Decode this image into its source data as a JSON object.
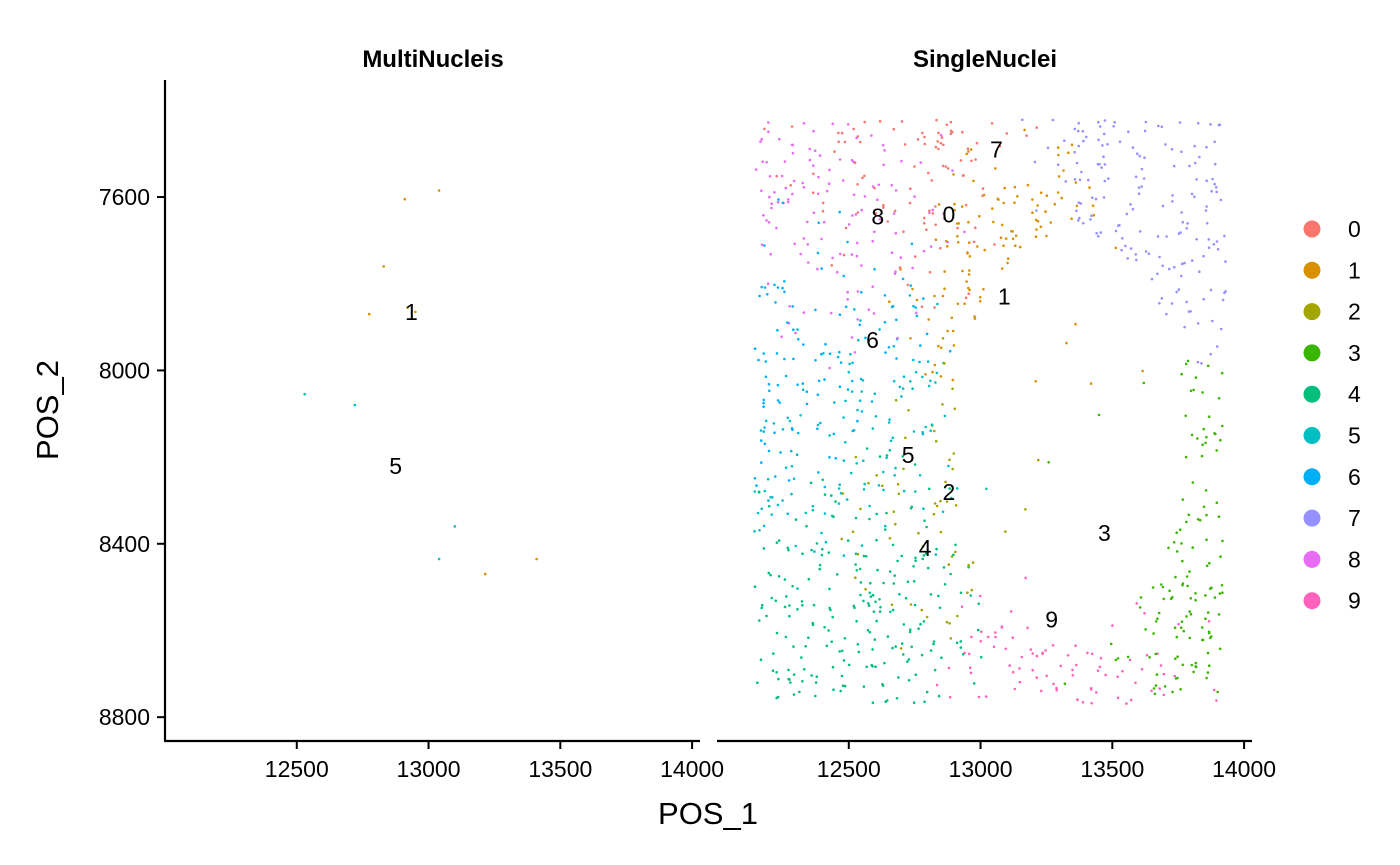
{
  "chart_data": {
    "type": "scatter",
    "xlabel": "POS_1",
    "ylabel": "POS_2",
    "x_ticks": [
      12500,
      13000,
      13500,
      14000
    ],
    "y_ticks": [
      7600,
      8000,
      8400,
      8800
    ],
    "xlim": [
      12000,
      14030
    ],
    "ylim": [
      7330,
      8855
    ],
    "y_reversed": true,
    "legend_position": "right",
    "legend": [
      {
        "label": "0",
        "color": "#F8766D"
      },
      {
        "label": "1",
        "color": "#D89000"
      },
      {
        "label": "2",
        "color": "#A3A500"
      },
      {
        "label": "3",
        "color": "#39B600"
      },
      {
        "label": "4",
        "color": "#00BF7D"
      },
      {
        "label": "5",
        "color": "#00BFC4"
      },
      {
        "label": "6",
        "color": "#00B0F6"
      },
      {
        "label": "7",
        "color": "#9590FF"
      },
      {
        "label": "8",
        "color": "#E76BF3"
      },
      {
        "label": "9",
        "color": "#FF62BC"
      }
    ],
    "panels": [
      {
        "title": "MultiNucleis",
        "points": [
          {
            "x": 12910,
            "y": 7605,
            "c": 1
          },
          {
            "x": 13040,
            "y": 7585,
            "c": 1
          },
          {
            "x": 12830,
            "y": 7760,
            "c": 1
          },
          {
            "x": 12775,
            "y": 7870,
            "c": 1
          },
          {
            "x": 12920,
            "y": 7855,
            "c": 1
          },
          {
            "x": 12950,
            "y": 7865,
            "c": 1
          },
          {
            "x": 12530,
            "y": 8055,
            "c": 5
          },
          {
            "x": 12720,
            "y": 8080,
            "c": 5
          },
          {
            "x": 13100,
            "y": 8360,
            "c": 5
          },
          {
            "x": 13040,
            "y": 8435,
            "c": 5
          },
          {
            "x": 13215,
            "y": 8470,
            "c": 1
          },
          {
            "x": 13410,
            "y": 8435,
            "c": 1
          }
        ],
        "cluster_labels": [
          {
            "text": "1",
            "x": 12935,
            "y": 7865
          },
          {
            "text": "5",
            "x": 12875,
            "y": 8220
          }
        ]
      },
      {
        "title": "SingleNuclei",
        "points": [],
        "cluster_labels": [
          {
            "text": "7",
            "x": 13060,
            "y": 7490
          },
          {
            "text": "0",
            "x": 12880,
            "y": 7640
          },
          {
            "text": "8",
            "x": 12610,
            "y": 7645
          },
          {
            "text": "1",
            "x": 13090,
            "y": 7830
          },
          {
            "text": "6",
            "x": 12590,
            "y": 7930
          },
          {
            "text": "5",
            "x": 12725,
            "y": 8195
          },
          {
            "text": "2",
            "x": 12880,
            "y": 8280
          },
          {
            "text": "3",
            "x": 13470,
            "y": 8375
          },
          {
            "text": "4",
            "x": 12790,
            "y": 8410
          },
          {
            "text": "9",
            "x": 13270,
            "y": 8575
          }
        ]
      }
    ]
  }
}
